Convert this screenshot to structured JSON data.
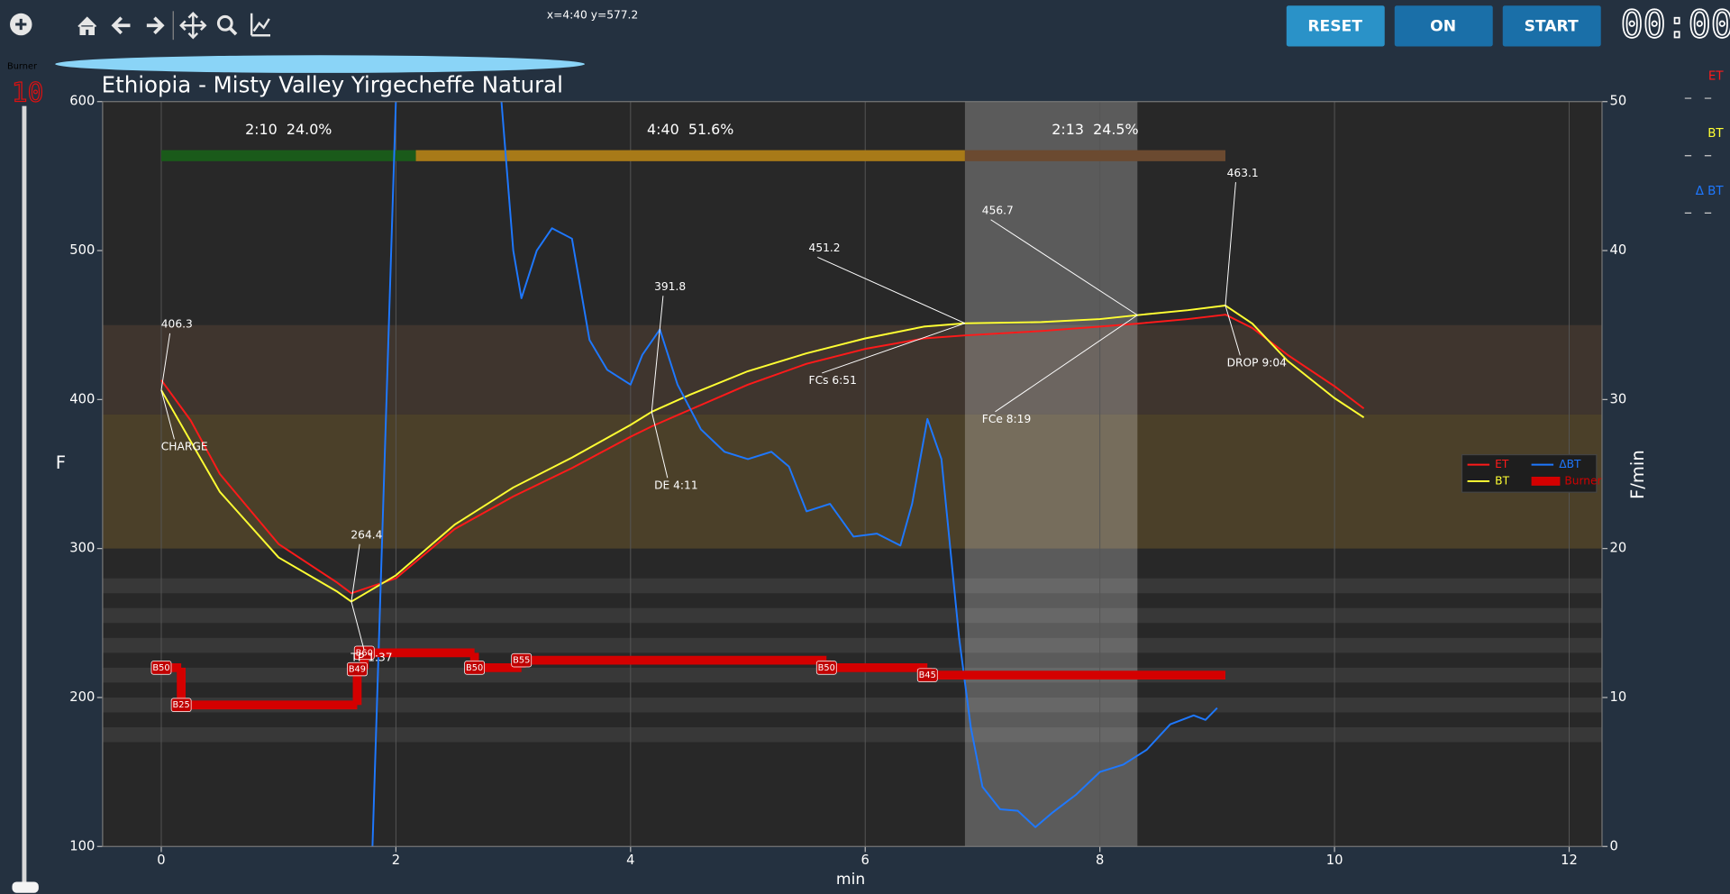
{
  "toolbar_status": "x=4:40 y=577.2",
  "buttons": [
    "RESET",
    "ON",
    "START"
  ],
  "timer": "00:00",
  "burner_control": {
    "label": "Burner",
    "value": 10
  },
  "readouts": [
    "ET",
    "BT",
    "Δ BT"
  ],
  "chart_data": {
    "type": "line",
    "title": "Ethiopia - Misty Valley Yirgecheffe Natural",
    "xlabel": "min",
    "ylabel": "F",
    "y2label": "F/min",
    "xlim": [
      -0.5,
      12.28
    ],
    "xticks": [
      0,
      2,
      4,
      6,
      8,
      10,
      12
    ],
    "ylim": [
      100,
      600
    ],
    "yticks": [
      100,
      200,
      300,
      400,
      500,
      600
    ],
    "y2lim": [
      0,
      50
    ],
    "y2ticks": [
      0,
      10,
      20,
      30,
      40,
      50
    ],
    "grid": true,
    "legend": "center right",
    "x": [
      0,
      0.25,
      0.5,
      1,
      1.5,
      1.62,
      2,
      2.5,
      3,
      3.5,
      4,
      4.18,
      4.5,
      5,
      5.5,
      6,
      6.5,
      6.85,
      7.5,
      8,
      8.32,
      8.75,
      9.07,
      9.3,
      9.6,
      10,
      10.25
    ],
    "series": [
      {
        "name": "ET",
        "color": "#ff1a1a",
        "values": [
          413,
          386,
          350,
          303,
          277,
          270,
          280,
          313,
          335,
          354,
          375,
          382,
          393,
          410,
          424,
          434,
          441,
          443,
          446,
          449,
          451,
          454,
          457,
          448,
          430,
          409,
          394
        ]
      },
      {
        "name": "BT",
        "color": "#ffff33",
        "values": [
          406.3,
          372,
          338,
          294,
          271,
          264.4,
          282,
          316,
          341,
          361,
          383,
          391.8,
          403,
          419,
          431,
          441,
          449,
          451.2,
          452,
          454,
          456.7,
          460,
          463.1,
          451,
          426,
          401,
          388
        ]
      },
      {
        "name": "ΔBT",
        "color": "#1e78ff",
        "axis": "y2",
        "x": [
          1.8,
          1.9,
          2.0,
          2.5,
          2.9,
          3.0,
          3.07,
          3.2,
          3.33,
          3.5,
          3.65,
          3.8,
          4.0,
          4.1,
          4.25,
          4.4,
          4.6,
          4.8,
          5.0,
          5.2,
          5.35,
          5.5,
          5.7,
          5.9,
          6.1,
          6.3,
          6.4,
          6.53,
          6.65,
          6.8,
          6.9,
          7.0,
          7.15,
          7.3,
          7.45,
          7.6,
          7.8,
          8.0,
          8.2,
          8.4,
          8.6,
          8.8,
          8.9,
          9.0
        ],
        "values": [
          0,
          25,
          50,
          null,
          50,
          40,
          36.8,
          40,
          41.5,
          40.8,
          34,
          32,
          31,
          33,
          34.7,
          31,
          28,
          26.5,
          26,
          26.5,
          25.5,
          22.5,
          23,
          20.8,
          21,
          20.2,
          23,
          28.7,
          26,
          14,
          8,
          4,
          2.5,
          2.4,
          1.3,
          2.3,
          3.5,
          5,
          5.5,
          6.5,
          8.2,
          8.8,
          8.5,
          9.3
        ]
      }
    ],
    "burner": {
      "name": "Burner",
      "color": "#d40000",
      "x": [
        0,
        0.17,
        1.67,
        1.73,
        2.67,
        3.07,
        5.67,
        6.53
      ],
      "values": [
        50,
        25,
        49,
        60,
        50,
        55,
        50,
        45
      ],
      "value_labels": [
        "B50",
        "B25",
        "B49",
        "B60",
        "B50",
        "B55",
        "B50",
        "B45"
      ]
    },
    "annotations": [
      {
        "event": "CHARGE",
        "x": 0,
        "y": 406.3
      },
      {
        "event": "TP 1:37",
        "x": 1.62,
        "y": 264.4
      },
      {
        "event": "DE 4:11",
        "x": 4.18,
        "y": 391.8
      },
      {
        "event": "FCs 6:51",
        "x": 6.85,
        "y": 451.2
      },
      {
        "event": "FCe 8:19",
        "x": 8.32,
        "y": 456.7
      },
      {
        "event": "DROP 9:04",
        "x": 9.07,
        "y": 463.1
      }
    ],
    "phases": [
      {
        "label": "2:10  24.0%",
        "start": 0,
        "end": 2.17,
        "color": "#1a5a1a"
      },
      {
        "label": "4:40  51.6%",
        "start": 2.17,
        "end": 6.85,
        "color": "#a87a18"
      },
      {
        "label": "2:13  24.5%",
        "start": 6.85,
        "end": 9.07,
        "color": "#6b4a30"
      }
    ],
    "highlight": {
      "from": 6.85,
      "to": 8.32
    },
    "bands": [
      {
        "from": 390,
        "to": 450,
        "color": "#3f352e"
      },
      {
        "from": 300,
        "to": 390,
        "color": "#4b4029"
      },
      {
        "from": 270,
        "to": 280,
        "color": "#383838"
      },
      {
        "from": 250,
        "to": 260,
        "color": "#383838"
      },
      {
        "from": 230,
        "to": 240,
        "color": "#383838"
      },
      {
        "from": 210,
        "to": 220,
        "color": "#383838"
      },
      {
        "from": 190,
        "to": 200,
        "color": "#383838"
      },
      {
        "from": 170,
        "to": 180,
        "color": "#383838"
      }
    ]
  }
}
